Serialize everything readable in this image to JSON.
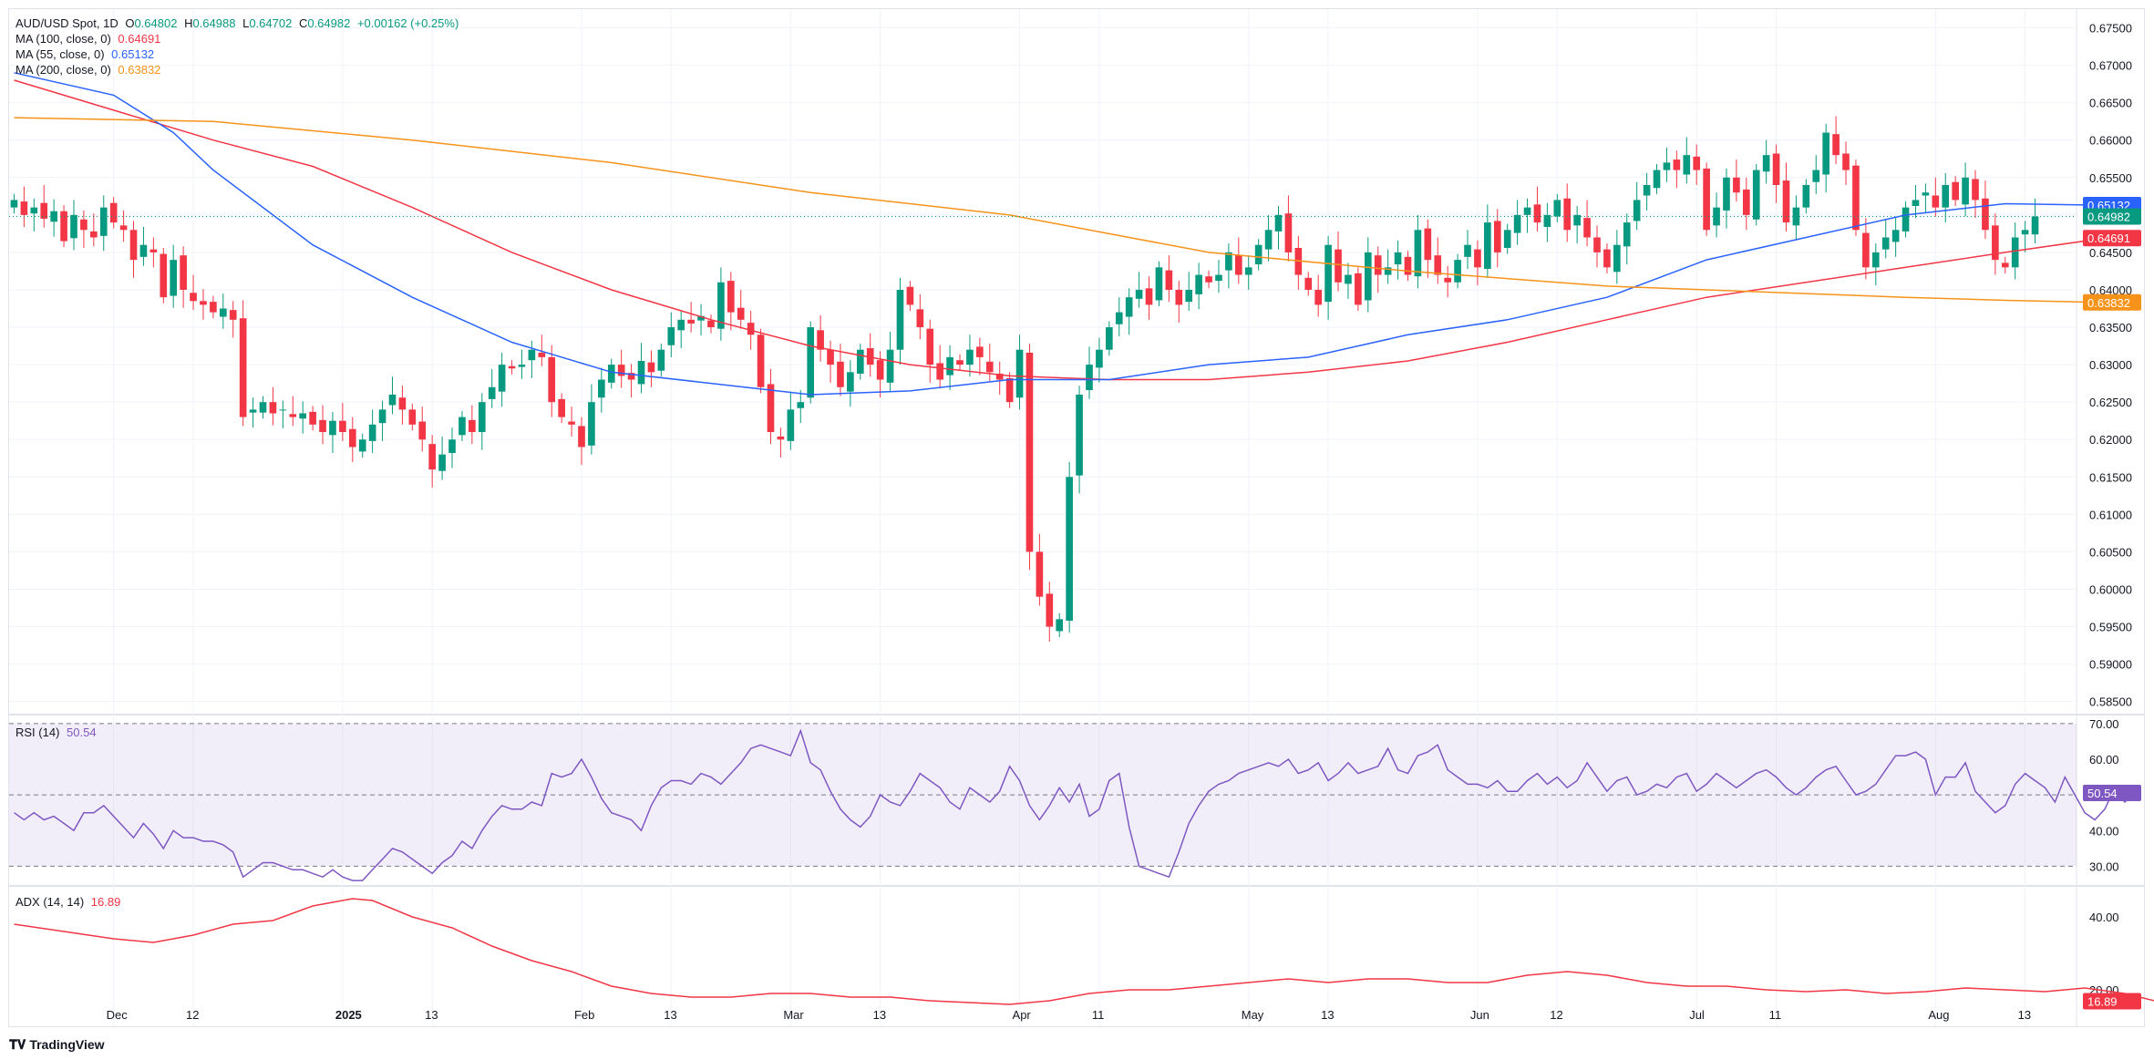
{
  "legend": {
    "symbol": "AUD/USD Spot, 1D",
    "o_label": "O",
    "o_value": "0.64802",
    "h_label": "H",
    "h_value": "0.64988",
    "l_label": "L",
    "l_value": "0.64702",
    "c_label": "C",
    "c_value": "0.64982",
    "change": "+0.00162 (+0.25%)",
    "ma100_label": "MA (100, close, 0)",
    "ma100_value": "0.64691",
    "ma55_label": "MA (55, close, 0)",
    "ma55_value": "0.65132",
    "ma200_label": "MA (200, close, 0)",
    "ma200_value": "0.63832",
    "rsi_label": "RSI (14)",
    "rsi_value": "50.54",
    "adx_label": "ADX (14, 14)",
    "adx_value": "16.89"
  },
  "footer": {
    "brand": "TradingView"
  },
  "colors": {
    "up": "#089981",
    "down": "#f23645",
    "ma55": "#2962ff",
    "ma100": "#f23645",
    "ma200": "#f7931a",
    "rsi": "#7e57c2",
    "adx": "#f23645",
    "grid": "#f0f3fa"
  },
  "chart_data": [
    {
      "type": "candlestick",
      "title": "AUD/USD Spot, 1D",
      "price_axis_ticks": [
        "0.67500",
        "0.67000",
        "0.66500",
        "0.66000",
        "0.65500",
        "0.65000",
        "0.64500",
        "0.64000",
        "0.63500",
        "0.63000",
        "0.62500",
        "0.62000",
        "0.61500",
        "0.61000",
        "0.60500",
        "0.60000",
        "0.59500",
        "0.59000",
        "0.58500"
      ],
      "ylim": [
        0.5835,
        0.6775
      ],
      "x_tick_labels": [
        {
          "label": "Dec",
          "index": 10
        },
        {
          "label": "12",
          "index": 18
        },
        {
          "label": "2025",
          "index": 33
        },
        {
          "label": "13",
          "index": 42
        },
        {
          "label": "Feb",
          "index": 57
        },
        {
          "label": "13",
          "index": 66
        },
        {
          "label": "Mar",
          "index": 78
        },
        {
          "label": "13",
          "index": 87
        },
        {
          "label": "Apr",
          "index": 101
        },
        {
          "label": "11",
          "index": 109
        },
        {
          "label": "May",
          "index": 124
        },
        {
          "label": "13",
          "index": 132
        },
        {
          "label": "Jun",
          "index": 147
        },
        {
          "label": "12",
          "index": 155
        },
        {
          "label": "Jul",
          "index": 169
        },
        {
          "label": "11",
          "index": 177
        },
        {
          "label": "Aug",
          "index": 193
        },
        {
          "label": "13",
          "index": 202
        }
      ],
      "close": [
        0.652,
        0.65,
        0.651,
        0.6495,
        0.6505,
        0.6465,
        0.65,
        0.648,
        0.647,
        0.651,
        0.649,
        0.648,
        0.644,
        0.646,
        0.645,
        0.639,
        0.644,
        0.64,
        0.6385,
        0.638,
        0.637,
        0.6375,
        0.636,
        0.623,
        0.624,
        0.625,
        0.6235,
        0.624,
        0.623,
        0.6235,
        0.622,
        0.621,
        0.6225,
        0.621,
        0.619,
        0.62,
        0.622,
        0.624,
        0.626,
        0.624,
        0.622,
        0.62,
        0.616,
        0.618,
        0.62,
        0.623,
        0.621,
        0.625,
        0.627,
        0.63,
        0.6295,
        0.63,
        0.632,
        0.631,
        0.625,
        0.623,
        0.622,
        0.619,
        0.625,
        0.628,
        0.63,
        0.6285,
        0.628,
        0.6305,
        0.629,
        0.632,
        0.635,
        0.636,
        0.6355,
        0.6365,
        0.635,
        0.641,
        0.637,
        0.636,
        0.634,
        0.627,
        0.621,
        0.62,
        0.624,
        0.625,
        0.635,
        0.632,
        0.63,
        0.627,
        0.629,
        0.632,
        0.63,
        0.628,
        0.632,
        0.64,
        0.638,
        0.635,
        0.63,
        0.628,
        0.631,
        0.63,
        0.632,
        0.631,
        0.629,
        0.628,
        0.625,
        0.632,
        0.605,
        0.599,
        0.595,
        0.596,
        0.615,
        0.626,
        0.63,
        0.632,
        0.635,
        0.637,
        0.639,
        0.64,
        0.638,
        0.643,
        0.64,
        0.638,
        0.64,
        0.642,
        0.641,
        0.642,
        0.645,
        0.642,
        0.643,
        0.646,
        0.648,
        0.65,
        0.645,
        0.642,
        0.64,
        0.638,
        0.646,
        0.641,
        0.642,
        0.638,
        0.645,
        0.642,
        0.643,
        0.645,
        0.642,
        0.648,
        0.644,
        0.642,
        0.641,
        0.644,
        0.646,
        0.643,
        0.649,
        0.645,
        0.648,
        0.65,
        0.651,
        0.649,
        0.65,
        0.652,
        0.648,
        0.65,
        0.647,
        0.645,
        0.643,
        0.646,
        0.649,
        0.652,
        0.654,
        0.656,
        0.657,
        0.656,
        0.658,
        0.656,
        0.648,
        0.651,
        0.655,
        0.653,
        0.65,
        0.656,
        0.658,
        0.654,
        0.649,
        0.651,
        0.654,
        0.656,
        0.661,
        0.658,
        0.656,
        0.648,
        0.643,
        0.645,
        0.647,
        0.648,
        0.651,
        0.652,
        0.653,
        0.651,
        0.654,
        0.652,
        0.655,
        0.652,
        0.648,
        0.644,
        0.643,
        0.647,
        0.648,
        0.6498
      ],
      "series": [
        {
          "name": "MA (100, close, 0)",
          "last_value": 0.64691,
          "points": [
            [
              0,
              0.668
            ],
            [
              10,
              0.664
            ],
            [
              20,
              0.66
            ],
            [
              30,
              0.6565
            ],
            [
              40,
              0.651
            ],
            [
              50,
              0.645
            ],
            [
              60,
              0.64
            ],
            [
              70,
              0.636
            ],
            [
              80,
              0.6325
            ],
            [
              90,
              0.63
            ],
            [
              100,
              0.6285
            ],
            [
              110,
              0.628
            ],
            [
              120,
              0.628
            ],
            [
              130,
              0.629
            ],
            [
              140,
              0.6305
            ],
            [
              150,
              0.633
            ],
            [
              160,
              0.636
            ],
            [
              170,
              0.639
            ],
            [
              180,
              0.641
            ],
            [
              190,
              0.643
            ],
            [
              200,
              0.645
            ],
            [
              210,
              0.6469
            ]
          ]
        },
        {
          "name": "MA (55, close, 0)",
          "last_value": 0.65132,
          "points": [
            [
              0,
              0.669
            ],
            [
              10,
              0.666
            ],
            [
              16,
              0.661
            ],
            [
              20,
              0.656
            ],
            [
              30,
              0.646
            ],
            [
              40,
              0.639
            ],
            [
              50,
              0.633
            ],
            [
              60,
              0.629
            ],
            [
              70,
              0.6275
            ],
            [
              80,
              0.626
            ],
            [
              90,
              0.6265
            ],
            [
              100,
              0.628
            ],
            [
              110,
              0.628
            ],
            [
              120,
              0.63
            ],
            [
              130,
              0.631
            ],
            [
              140,
              0.634
            ],
            [
              150,
              0.636
            ],
            [
              160,
              0.639
            ],
            [
              170,
              0.644
            ],
            [
              180,
              0.647
            ],
            [
              190,
              0.65
            ],
            [
              200,
              0.6515
            ],
            [
              210,
              0.6513
            ]
          ]
        },
        {
          "name": "MA (200, close, 0)",
          "last_value": 0.63832,
          "points": [
            [
              0,
              0.663
            ],
            [
              20,
              0.6625
            ],
            [
              40,
              0.66
            ],
            [
              60,
              0.657
            ],
            [
              80,
              0.653
            ],
            [
              100,
              0.65
            ],
            [
              120,
              0.645
            ],
            [
              140,
              0.6425
            ],
            [
              160,
              0.6405
            ],
            [
              170,
              0.64
            ],
            [
              180,
              0.6395
            ],
            [
              190,
              0.639
            ],
            [
              200,
              0.6386
            ],
            [
              210,
              0.6383
            ]
          ]
        }
      ],
      "last_price_label": "0.64982"
    },
    {
      "type": "line",
      "title": "RSI (14)",
      "ylim": [
        25,
        72
      ],
      "y_tick_labels": [
        "70.00",
        "60.00",
        "40.00",
        "30.00"
      ],
      "band": [
        30,
        70
      ],
      "midline": 50,
      "series": [
        {
          "name": "RSI (14)",
          "last_value": 50.54,
          "values": [
            45,
            43,
            45,
            43,
            44,
            42,
            40,
            45,
            45,
            47,
            44,
            41,
            38,
            42,
            39,
            35,
            40,
            38,
            38,
            37,
            37,
            36,
            34,
            27,
            29,
            31,
            31,
            30,
            29,
            29,
            28,
            27,
            29,
            27,
            26,
            26,
            29,
            32,
            35,
            34,
            32,
            30,
            28,
            31,
            33,
            37,
            35,
            40,
            44,
            47,
            46,
            46,
            48,
            47,
            56,
            55,
            56,
            60,
            55,
            49,
            45,
            44,
            43,
            40,
            47,
            52,
            54,
            54,
            53,
            56,
            55,
            53,
            56,
            59,
            63,
            64,
            63,
            62,
            61,
            68,
            59,
            57,
            51,
            46,
            43,
            41,
            44,
            50,
            48,
            47,
            51,
            56,
            54,
            52,
            48,
            46,
            52,
            50,
            48,
            51,
            58,
            54,
            47,
            43,
            47,
            52,
            48,
            53,
            44,
            46,
            54,
            56,
            41,
            30,
            29,
            28,
            27,
            34,
            42,
            47,
            51,
            53,
            54,
            56,
            57,
            58,
            59,
            58,
            60,
            56,
            57,
            59,
            54,
            56,
            59,
            56,
            57,
            58,
            63,
            57,
            56,
            61,
            62,
            64,
            57,
            55,
            53,
            53,
            52,
            54,
            51,
            51,
            54,
            56,
            53,
            55,
            52,
            54,
            59,
            55,
            51,
            54,
            55,
            50,
            51,
            53,
            52,
            55,
            56,
            51,
            53,
            56,
            54,
            52,
            54,
            56,
            57,
            55,
            52,
            50,
            52,
            55,
            57,
            58,
            54,
            50,
            51,
            53,
            57,
            61,
            61,
            62,
            60,
            50,
            55,
            55,
            59,
            51,
            48,
            45,
            47,
            53,
            56,
            54,
            52,
            48,
            55,
            50,
            45,
            43,
            46,
            52,
            48,
            50
          ]
        }
      ]
    },
    {
      "type": "line",
      "title": "ADX (14, 14)",
      "ylim": [
        10,
        48
      ],
      "y_tick_labels": [
        "40.00",
        "20.00"
      ],
      "series": [
        {
          "name": "ADX (14, 14)",
          "last_value": 16.89,
          "points": [
            [
              0,
              38
            ],
            [
              5,
              36
            ],
            [
              10,
              34
            ],
            [
              14,
              33
            ],
            [
              18,
              35
            ],
            [
              22,
              38
            ],
            [
              26,
              39
            ],
            [
              30,
              43
            ],
            [
              34,
              45
            ],
            [
              36,
              44.5
            ],
            [
              40,
              40
            ],
            [
              44,
              37
            ],
            [
              48,
              32
            ],
            [
              52,
              28
            ],
            [
              56,
              25
            ],
            [
              60,
              21
            ],
            [
              64,
              19
            ],
            [
              68,
              18
            ],
            [
              72,
              18
            ],
            [
              76,
              19
            ],
            [
              80,
              19
            ],
            [
              84,
              18
            ],
            [
              88,
              18
            ],
            [
              92,
              17
            ],
            [
              96,
              16.5
            ],
            [
              100,
              16
            ],
            [
              104,
              17
            ],
            [
              108,
              19
            ],
            [
              112,
              20
            ],
            [
              116,
              20
            ],
            [
              120,
              21
            ],
            [
              124,
              22
            ],
            [
              128,
              23
            ],
            [
              132,
              22
            ],
            [
              136,
              23
            ],
            [
              140,
              23
            ],
            [
              144,
              22
            ],
            [
              148,
              22
            ],
            [
              152,
              24
            ],
            [
              156,
              25
            ],
            [
              160,
              24
            ],
            [
              164,
              22
            ],
            [
              168,
              21
            ],
            [
              172,
              21
            ],
            [
              176,
              20
            ],
            [
              180,
              19.5
            ],
            [
              184,
              20
            ],
            [
              188,
              19
            ],
            [
              192,
              19.5
            ],
            [
              196,
              20.5
            ],
            [
              200,
              20
            ],
            [
              204,
              19.5
            ],
            [
              208,
              20.5
            ],
            [
              212,
              19
            ],
            [
              215,
              17
            ]
          ]
        }
      ]
    }
  ]
}
